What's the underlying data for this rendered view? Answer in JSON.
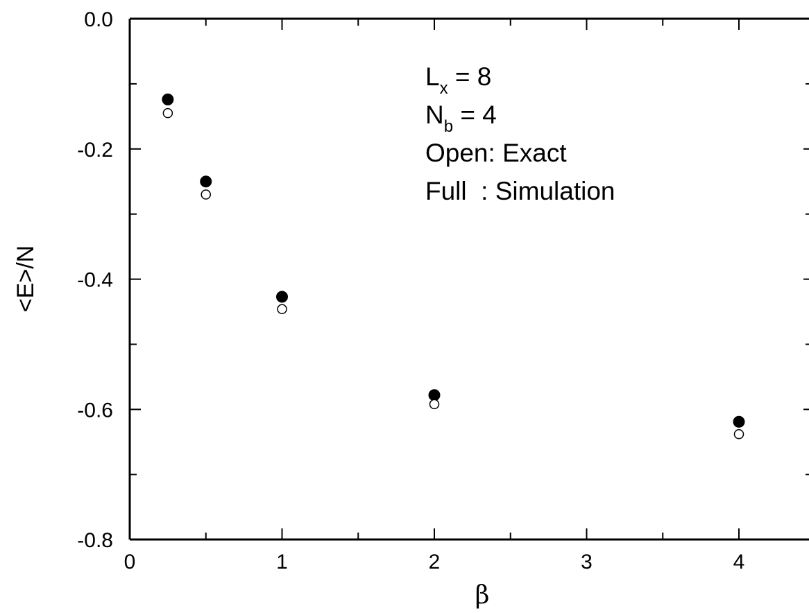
{
  "chart_data": {
    "type": "scatter",
    "xlabel": "β",
    "ylabel": "<E>/N",
    "xlim": [
      0,
      4.5
    ],
    "ylim": [
      -0.8,
      0.0
    ],
    "x_ticks": [
      "0",
      "1",
      "2",
      "3",
      "4"
    ],
    "y_ticks": [
      "0.0",
      "-0.2",
      "-0.4",
      "-0.6",
      "-0.8"
    ],
    "grid": false,
    "annotations": {
      "line1": {
        "main": "L",
        "sub": "x",
        "rest": " = 8"
      },
      "line2": {
        "main": "N",
        "sub": "b",
        "rest": " = 4"
      },
      "line3": "Open: Exact",
      "line4": "Full  : Simulation"
    },
    "series": [
      {
        "marker": "filled",
        "x": [
          0.25,
          0.5,
          1,
          2,
          4
        ],
        "y": [
          -0.124,
          -0.25,
          -0.427,
          -0.578,
          -0.619
        ]
      },
      {
        "marker": "open",
        "x": [
          0.25,
          0.5,
          1,
          2,
          4
        ],
        "y": [
          -0.145,
          -0.27,
          -0.446,
          -0.592,
          -0.638
        ]
      }
    ]
  }
}
